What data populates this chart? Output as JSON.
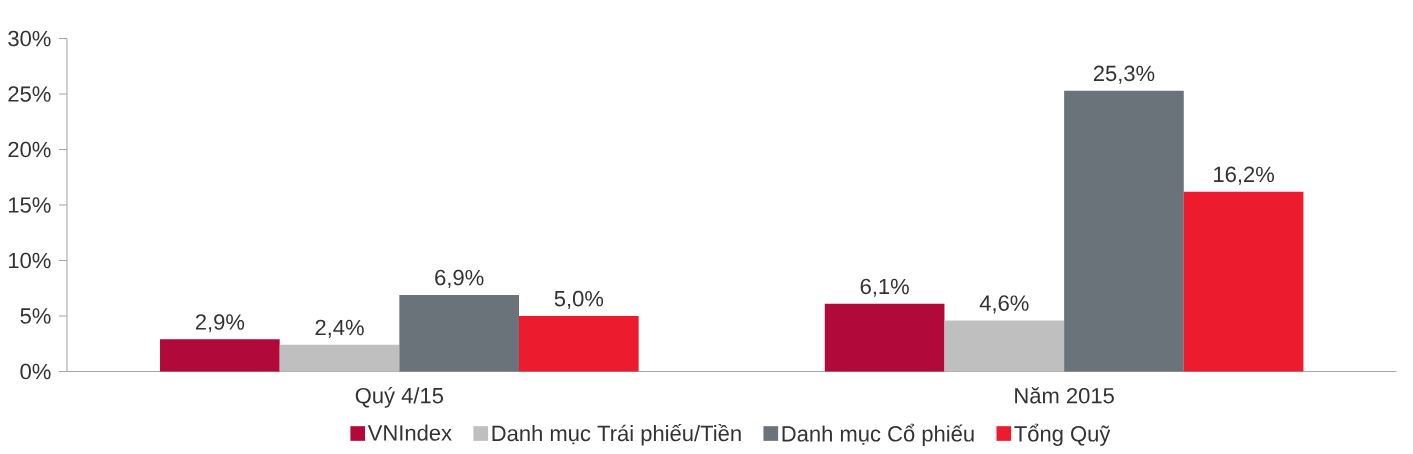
{
  "chart_data": {
    "type": "bar",
    "categories": [
      "Quý 4/15",
      "Năm 2015"
    ],
    "series": [
      {
        "name": "VNIndex",
        "color": "#b1093a",
        "values": [
          2.9,
          6.1
        ],
        "value_labels": [
          "2,9%",
          "6,1%"
        ]
      },
      {
        "name": "Danh mục Trái phiếu/Tiền",
        "color": "#bfbfbf",
        "values": [
          2.4,
          4.6
        ],
        "value_labels": [
          "2,4%",
          "4,6%"
        ]
      },
      {
        "name": "Danh mục Cổ phiếu",
        "color": "#6a737a",
        "values": [
          6.9,
          25.3
        ],
        "value_labels": [
          "6,9%",
          "25,3%"
        ]
      },
      {
        "name": "Tổng Quỹ",
        "color": "#ec1c2e",
        "values": [
          5.0,
          16.2
        ],
        "value_labels": [
          "5,0%",
          "16,2%"
        ]
      }
    ],
    "ylim": [
      0,
      30
    ],
    "yticks": [
      {
        "value": 0,
        "label": "0%"
      },
      {
        "value": 5,
        "label": "5%"
      },
      {
        "value": 10,
        "label": "10%"
      },
      {
        "value": 15,
        "label": "15%"
      },
      {
        "value": 20,
        "label": "20%"
      },
      {
        "value": 25,
        "label": "25%"
      },
      {
        "value": 30,
        "label": "30%"
      }
    ],
    "grid": false,
    "legend": "bottom"
  }
}
